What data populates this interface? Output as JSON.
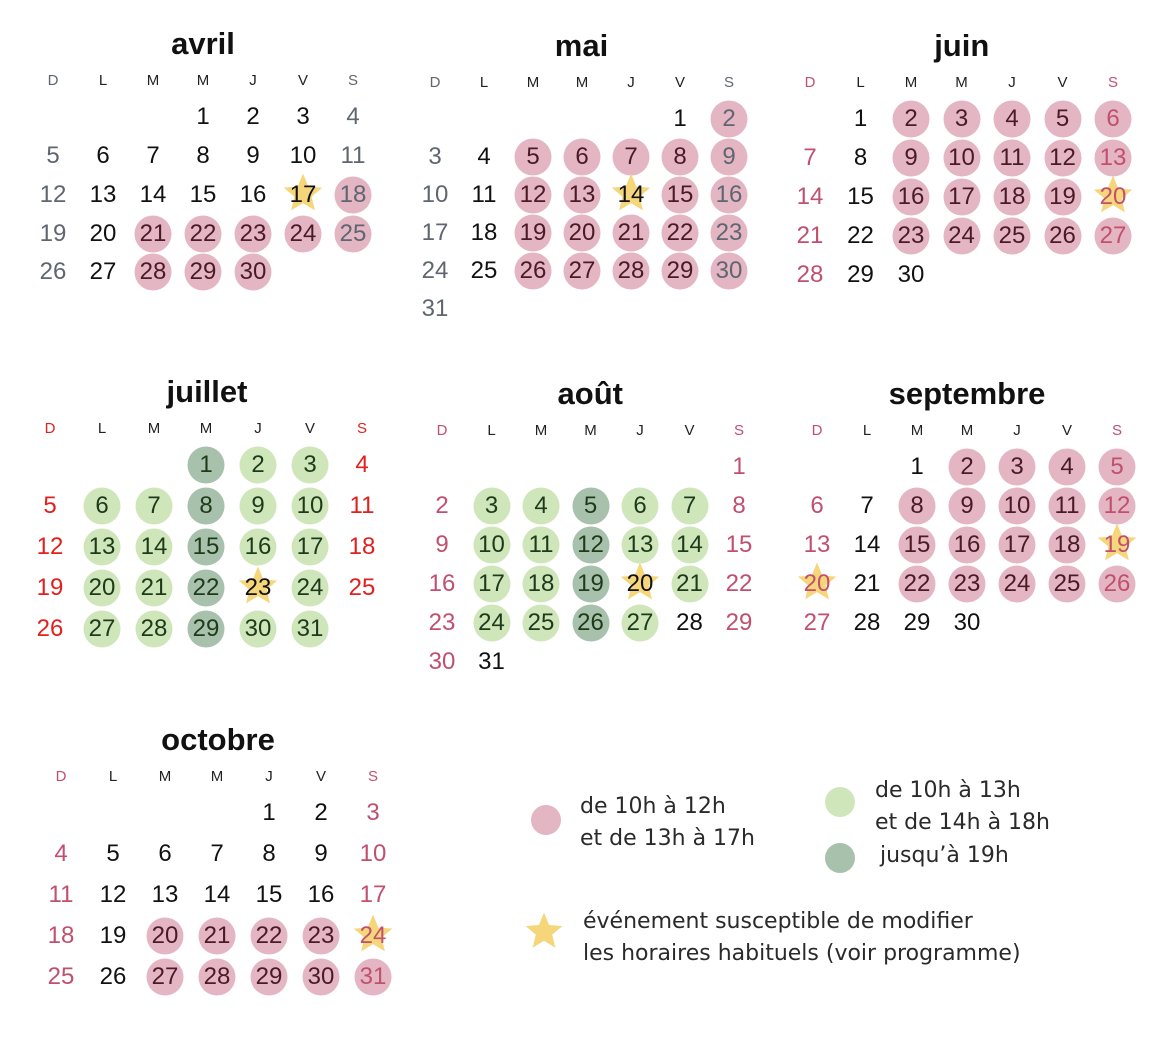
{
  "colors": {
    "pink": "#e4b5c3",
    "green": "#cfe6bb",
    "dark": "#a8c1ac",
    "star": "#f5d67a",
    "weekday": "#111111",
    "gray": "#5f6670",
    "red": "#e0211f",
    "rose": "#c0506e"
  },
  "weekday_labels": [
    "D",
    "L",
    "M",
    "M",
    "J",
    "V",
    "S"
  ],
  "months": [
    {
      "name": "avril",
      "first_weekday": 3,
      "days": 30,
      "weekend": "gray",
      "pink": [
        18,
        21,
        22,
        23,
        24,
        25,
        28,
        29,
        30
      ],
      "green": [],
      "dark": [],
      "star": [
        17
      ]
    },
    {
      "name": "mai",
      "first_weekday": 5,
      "days": 31,
      "weekend": "gray",
      "pink": [
        2,
        5,
        6,
        7,
        8,
        9,
        12,
        13,
        15,
        16,
        19,
        20,
        21,
        22,
        23,
        26,
        27,
        28,
        29,
        30
      ],
      "green": [],
      "dark": [],
      "star": [
        14
      ]
    },
    {
      "name": "juin",
      "first_weekday": 1,
      "days": 30,
      "weekend": "rose",
      "pink": [
        2,
        3,
        4,
        5,
        6,
        9,
        10,
        11,
        12,
        13,
        16,
        17,
        18,
        19,
        23,
        24,
        25,
        26,
        27
      ],
      "green": [],
      "dark": [],
      "star": [
        20
      ]
    },
    {
      "name": "juillet",
      "first_weekday": 3,
      "days": 31,
      "weekend": "red",
      "pink": [],
      "green": [
        2,
        3,
        6,
        7,
        9,
        10,
        13,
        14,
        16,
        17,
        20,
        21,
        24,
        27,
        28,
        30,
        31
      ],
      "dark": [
        1,
        8,
        15,
        22,
        29
      ],
      "star": [
        23
      ]
    },
    {
      "name": "août",
      "first_weekday": 6,
      "days": 31,
      "weekend": "rose",
      "pink": [],
      "green": [
        3,
        4,
        6,
        7,
        10,
        11,
        13,
        14,
        17,
        18,
        21,
        24,
        25,
        27
      ],
      "dark": [
        5,
        12,
        19,
        26
      ],
      "star": [
        20
      ]
    },
    {
      "name": "septembre",
      "first_weekday": 2,
      "days": 30,
      "weekend": "rose",
      "pink": [
        2,
        3,
        4,
        5,
        8,
        9,
        10,
        11,
        12,
        15,
        16,
        17,
        18,
        22,
        23,
        24,
        25,
        26
      ],
      "green": [],
      "dark": [],
      "star": [
        19,
        20
      ]
    },
    {
      "name": "octobre",
      "first_weekday": 4,
      "days": 31,
      "weekend": "rose",
      "pink": [
        20,
        21,
        22,
        23,
        27,
        28,
        29,
        30,
        31
      ],
      "green": [],
      "dark": [],
      "star": [
        24
      ]
    }
  ],
  "legend": {
    "pink_line1": "de 10h à 12h",
    "pink_line2": "et de 13h à 17h",
    "green_line1": "de 10h à 13h",
    "green_line2": "et de 14h à 18h",
    "dark_line": "jusqu’à 19h",
    "star_line1": "événement  susceptible de modifier",
    "star_line2": "les horaires habituels (voir programme)"
  }
}
